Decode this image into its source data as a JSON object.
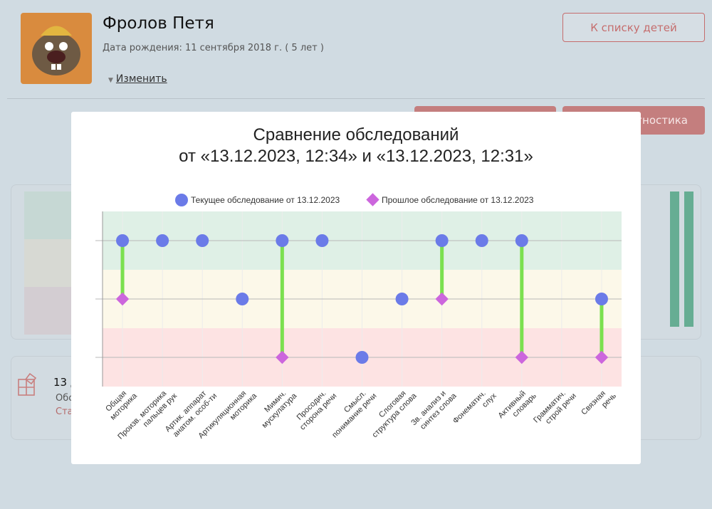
{
  "child": {
    "name": "Фролов Петя",
    "dob": "Дата рождения: 11 сентября 2018 г. ( 5 лет )",
    "edit_label": "Изменить"
  },
  "buttons": {
    "back_to_list": "К списку детей",
    "diagnostics": "Диагностика"
  },
  "bg_card": {
    "title": "13 д",
    "line1": "Обс",
    "line2": "Стат"
  },
  "modal": {
    "title_line1": "Сравнение обследований",
    "title_line2": "от «13.12.2023, 12:34» и «13.12.2023, 12:31»"
  },
  "colors": {
    "current": "#6b7be8",
    "previous": "#cc66dd",
    "connector": "#7be04f",
    "band_good": "#dff0e6",
    "band_mid": "#fcf8e9",
    "band_bad": "#fde3e3"
  },
  "chart_data": {
    "type": "scatter",
    "levels": [
      1,
      2,
      3
    ],
    "ylim": [
      0.5,
      3.5
    ],
    "legend": [
      "Текущее обследование от 13.12.2023",
      "Прошлое обследование от 13.12.2023"
    ],
    "legend_position": "top",
    "categories": [
      [
        "Общая",
        "моторика"
      ],
      [
        "Произв. моторика",
        "пальцев рук"
      ],
      [
        "Артик. аппарат",
        "анатом. особ-ти"
      ],
      [
        "Артикуляционная",
        "моторика"
      ],
      [
        "Мимич.",
        "мускулатура"
      ],
      [
        "Просодич.",
        "сторона речи"
      ],
      [
        "Смысл.",
        "понимание речи"
      ],
      [
        "Слоговая",
        "структура слова"
      ],
      [
        "Зв. анализ и",
        "синтез слова"
      ],
      [
        "Фонематич.",
        "слух"
      ],
      [
        "Активный",
        "словарь"
      ],
      [
        "Грамматич.",
        "строй речи"
      ],
      [
        "Связная",
        "речь"
      ]
    ],
    "series": [
      {
        "name": "current",
        "values": [
          3,
          3,
          3,
          2,
          3,
          3,
          1,
          2,
          3,
          3,
          3,
          null,
          2
        ]
      },
      {
        "name": "previous",
        "values": [
          2,
          null,
          null,
          null,
          1,
          null,
          null,
          null,
          2,
          null,
          1,
          null,
          1
        ]
      }
    ]
  }
}
